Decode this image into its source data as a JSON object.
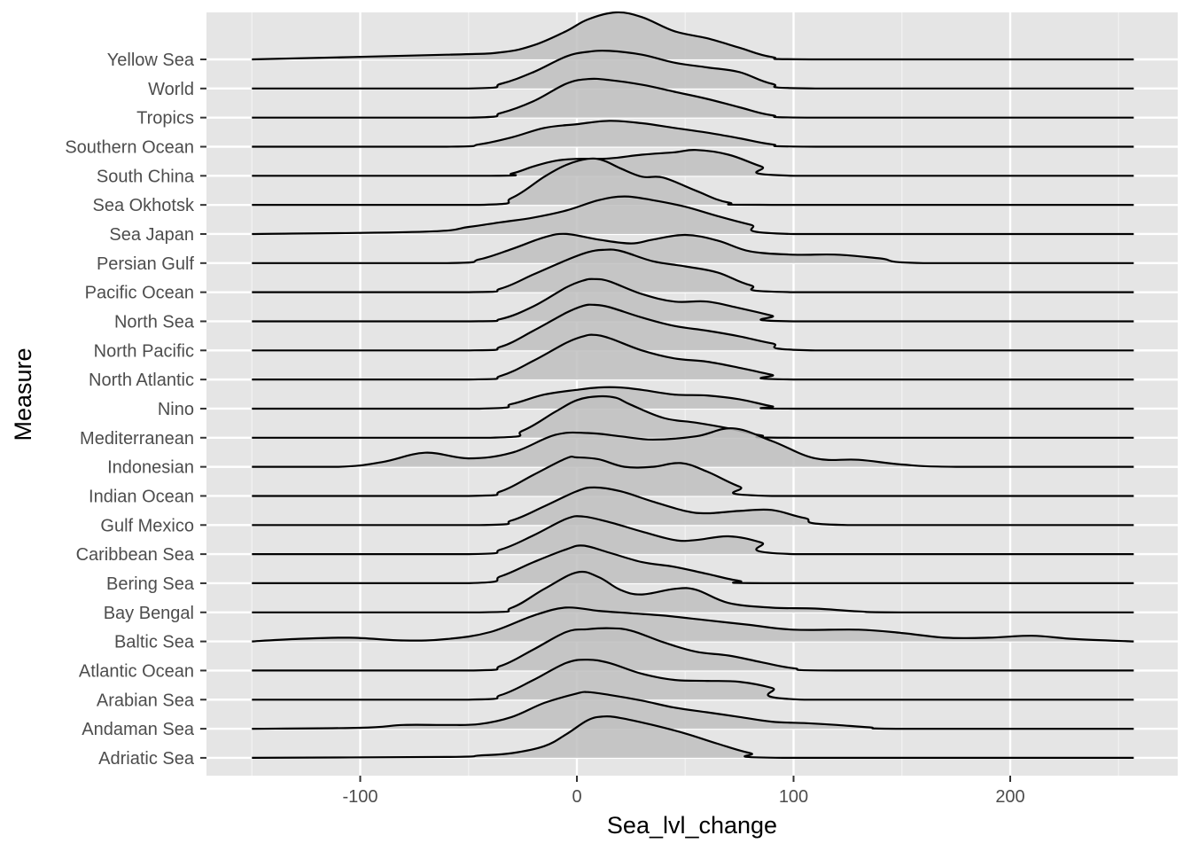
{
  "chart_data": {
    "type": "ridgeline",
    "xlabel": "Sea_lvl_change",
    "ylabel": "Measure",
    "xlim": [
      -172,
      260
    ],
    "x_ticks": [
      -100,
      0,
      100,
      200
    ],
    "x_tick_labels": [
      "-100",
      "0",
      "100",
      "200"
    ],
    "grid": true,
    "panel_background": "#e5e5e5",
    "fill_color": "#bfbfbf",
    "line_color": "#000000",
    "density_x_range": [
      -150,
      257
    ],
    "categories": [
      "Yellow Sea",
      "World",
      "Tropics",
      "Southern Ocean",
      "South China",
      "Sea Okhotsk",
      "Sea Japan",
      "Persian Gulf",
      "Pacific Ocean",
      "North Sea",
      "North Pacific",
      "North Atlantic",
      "Nino",
      "Mediterranean",
      "Indonesian",
      "Indian Ocean",
      "Gulf Mexico",
      "Caribbean Sea",
      "Bering Sea",
      "Bay Bengal",
      "Baltic Sea",
      "Atlantic Ocean",
      "Arabian Sea",
      "Andaman Sea",
      "Adriatic Sea"
    ],
    "series": [
      {
        "name": "Yellow Sea",
        "x": [
          -150,
          -60,
          -35,
          -20,
          -5,
          5,
          18,
          30,
          45,
          60,
          75,
          90,
          110,
          257
        ],
        "y": [
          0,
          0.1,
          0.15,
          0.3,
          0.6,
          0.85,
          1.0,
          0.9,
          0.6,
          0.45,
          0.25,
          0.05,
          0,
          0
        ]
      },
      {
        "name": "World",
        "x": [
          -150,
          -50,
          -35,
          -20,
          -5,
          5,
          15,
          30,
          45,
          60,
          75,
          90,
          110,
          257
        ],
        "y": [
          0,
          0,
          0.1,
          0.35,
          0.68,
          0.78,
          0.8,
          0.72,
          0.55,
          0.45,
          0.35,
          0.1,
          0,
          0
        ]
      },
      {
        "name": "Tropics",
        "x": [
          -150,
          -50,
          -35,
          -20,
          -5,
          5,
          15,
          30,
          45,
          60,
          75,
          90,
          110,
          257
        ],
        "y": [
          0,
          0,
          0.1,
          0.35,
          0.72,
          0.82,
          0.8,
          0.7,
          0.55,
          0.4,
          0.22,
          0.05,
          0,
          0
        ]
      },
      {
        "name": "Southern Ocean",
        "x": [
          -150,
          -60,
          -45,
          -30,
          -15,
          0,
          15,
          30,
          45,
          60,
          75,
          90,
          110,
          257
        ],
        "y": [
          0,
          0,
          0.05,
          0.2,
          0.4,
          0.48,
          0.55,
          0.5,
          0.4,
          0.3,
          0.18,
          0.05,
          0,
          0
        ]
      },
      {
        "name": "South China",
        "x": [
          -150,
          -40,
          -30,
          -20,
          -10,
          0,
          15,
          30,
          45,
          55,
          70,
          85,
          100,
          257
        ],
        "y": [
          0,
          0,
          0.05,
          0.2,
          0.32,
          0.36,
          0.37,
          0.45,
          0.5,
          0.55,
          0.45,
          0.2,
          0,
          0
        ]
      },
      {
        "name": "Sea Okhotsk",
        "x": [
          -150,
          -45,
          -30,
          -15,
          -5,
          5,
          12,
          20,
          30,
          40,
          55,
          70,
          90,
          257
        ],
        "y": [
          0,
          0,
          0.15,
          0.6,
          0.85,
          0.98,
          0.95,
          0.78,
          0.6,
          0.58,
          0.3,
          0.05,
          0,
          0
        ]
      },
      {
        "name": "Sea Japan",
        "x": [
          -150,
          -70,
          -50,
          -35,
          -20,
          -5,
          10,
          22,
          35,
          50,
          65,
          80,
          100,
          257
        ],
        "y": [
          0,
          0.05,
          0.15,
          0.25,
          0.35,
          0.5,
          0.72,
          0.8,
          0.72,
          0.58,
          0.38,
          0.2,
          0,
          0
        ]
      },
      {
        "name": "Persian Gulf",
        "x": [
          -150,
          -60,
          -45,
          -30,
          -15,
          -5,
          10,
          25,
          35,
          50,
          65,
          80,
          100,
          120,
          140,
          160,
          257
        ],
        "y": [
          0,
          0,
          0.08,
          0.3,
          0.55,
          0.62,
          0.5,
          0.42,
          0.5,
          0.6,
          0.48,
          0.25,
          0.18,
          0.18,
          0.1,
          0,
          0
        ]
      },
      {
        "name": "Pacific Ocean",
        "x": [
          -150,
          -50,
          -35,
          -20,
          -5,
          5,
          12,
          20,
          35,
          50,
          65,
          80,
          100,
          257
        ],
        "y": [
          0,
          0,
          0.08,
          0.38,
          0.68,
          0.85,
          0.9,
          0.88,
          0.66,
          0.55,
          0.42,
          0.15,
          0,
          0
        ]
      },
      {
        "name": "North Sea",
        "x": [
          -150,
          -50,
          -35,
          -20,
          -5,
          3,
          8,
          15,
          30,
          45,
          60,
          75,
          90,
          100,
          257
        ],
        "y": [
          0,
          0,
          0.05,
          0.32,
          0.72,
          0.87,
          0.9,
          0.85,
          0.58,
          0.42,
          0.42,
          0.28,
          0.12,
          0,
          0
        ]
      },
      {
        "name": "North Pacific",
        "x": [
          -150,
          -50,
          -35,
          -20,
          -5,
          3,
          8,
          15,
          30,
          45,
          60,
          75,
          90,
          110,
          257
        ],
        "y": [
          0,
          0,
          0.08,
          0.42,
          0.8,
          0.95,
          0.97,
          0.92,
          0.7,
          0.52,
          0.42,
          0.3,
          0.15,
          0,
          0
        ]
      },
      {
        "name": "North Atlantic",
        "x": [
          -150,
          -50,
          -35,
          -20,
          -5,
          3,
          8,
          15,
          30,
          45,
          60,
          75,
          90,
          100,
          257
        ],
        "y": [
          0,
          0,
          0.08,
          0.4,
          0.78,
          0.92,
          0.95,
          0.88,
          0.62,
          0.45,
          0.38,
          0.25,
          0.1,
          0,
          0
        ]
      },
      {
        "name": "Nino",
        "x": [
          -150,
          -45,
          -30,
          -15,
          0,
          10,
          20,
          30,
          45,
          60,
          75,
          90,
          100,
          257
        ],
        "y": [
          0,
          0,
          0.1,
          0.3,
          0.4,
          0.45,
          0.45,
          0.4,
          0.3,
          0.28,
          0.2,
          0.05,
          0,
          0
        ]
      },
      {
        "name": "Mediterranean",
        "x": [
          -150,
          -40,
          -25,
          -10,
          0,
          10,
          18,
          25,
          40,
          55,
          70,
          85,
          100,
          257
        ],
        "y": [
          0,
          0,
          0.15,
          0.55,
          0.8,
          0.88,
          0.85,
          0.7,
          0.42,
          0.32,
          0.2,
          0.05,
          0,
          0
        ]
      },
      {
        "name": "Indonesian",
        "x": [
          -150,
          -110,
          -90,
          -70,
          -50,
          -30,
          -10,
          5,
          20,
          35,
          55,
          72,
          90,
          110,
          130,
          150,
          175,
          257
        ],
        "y": [
          0,
          0,
          0.1,
          0.3,
          0.18,
          0.3,
          0.68,
          0.72,
          0.65,
          0.58,
          0.65,
          0.82,
          0.55,
          0.18,
          0.15,
          0.05,
          0,
          0
        ]
      },
      {
        "name": "Indian Ocean",
        "x": [
          -150,
          -50,
          -35,
          -20,
          -5,
          0,
          10,
          22,
          35,
          48,
          60,
          75,
          90,
          257
        ],
        "y": [
          0,
          0,
          0.1,
          0.45,
          0.8,
          0.82,
          0.78,
          0.62,
          0.62,
          0.7,
          0.52,
          0.2,
          0,
          0
        ]
      },
      {
        "name": "Gulf Mexico",
        "x": [
          -150,
          -45,
          -30,
          -15,
          0,
          8,
          20,
          35,
          50,
          60,
          75,
          90,
          105,
          125,
          257
        ],
        "y": [
          0,
          0,
          0.1,
          0.4,
          0.72,
          0.8,
          0.72,
          0.5,
          0.3,
          0.25,
          0.3,
          0.32,
          0.15,
          0,
          0
        ]
      },
      {
        "name": "Caribbean Sea",
        "x": [
          -150,
          -50,
          -35,
          -20,
          -5,
          3,
          15,
          30,
          45,
          55,
          70,
          85,
          100,
          257
        ],
        "y": [
          0,
          0,
          0.1,
          0.4,
          0.75,
          0.8,
          0.68,
          0.48,
          0.3,
          0.3,
          0.38,
          0.25,
          0,
          0
        ]
      },
      {
        "name": "Bering Sea",
        "x": [
          -150,
          -50,
          -35,
          -20,
          -5,
          3,
          15,
          30,
          45,
          60,
          75,
          90,
          257
        ],
        "y": [
          0,
          0,
          0.15,
          0.45,
          0.72,
          0.8,
          0.65,
          0.45,
          0.35,
          0.2,
          0.05,
          0,
          0
        ]
      },
      {
        "name": "Bay Bengal",
        "x": [
          -150,
          -45,
          -30,
          -15,
          0,
          10,
          20,
          30,
          45,
          55,
          70,
          90,
          110,
          130,
          150,
          257
        ],
        "y": [
          0,
          0,
          0.1,
          0.5,
          0.85,
          0.75,
          0.48,
          0.38,
          0.5,
          0.48,
          0.2,
          0.1,
          0.08,
          0.02,
          0,
          0
        ]
      },
      {
        "name": "Baltic Sea",
        "x": [
          -150,
          -130,
          -105,
          -80,
          -60,
          -40,
          -20,
          -5,
          10,
          25,
          40,
          60,
          80,
          100,
          130,
          150,
          170,
          190,
          210,
          230,
          257
        ],
        "y": [
          0,
          0.05,
          0.08,
          0.02,
          0.05,
          0.2,
          0.55,
          0.72,
          0.65,
          0.6,
          0.55,
          0.45,
          0.35,
          0.25,
          0.25,
          0.18,
          0.08,
          0.08,
          0.12,
          0.05,
          0
        ]
      },
      {
        "name": "Atlantic Ocean",
        "x": [
          -150,
          -50,
          -35,
          -20,
          -5,
          5,
          15,
          25,
          40,
          55,
          70,
          85,
          100,
          120,
          257
        ],
        "y": [
          0,
          0,
          0.1,
          0.45,
          0.82,
          0.88,
          0.9,
          0.85,
          0.6,
          0.4,
          0.32,
          0.18,
          0.05,
          0,
          0
        ]
      },
      {
        "name": "Arabian Sea",
        "x": [
          -150,
          -50,
          -35,
          -20,
          -5,
          5,
          15,
          30,
          45,
          60,
          75,
          90,
          105,
          257
        ],
        "y": [
          0,
          0,
          0.1,
          0.42,
          0.78,
          0.85,
          0.78,
          0.55,
          0.42,
          0.4,
          0.38,
          0.25,
          0,
          0
        ]
      },
      {
        "name": "Andaman Sea",
        "x": [
          -150,
          -100,
          -80,
          -60,
          -45,
          -30,
          -15,
          0,
          5,
          15,
          30,
          45,
          60,
          75,
          90,
          105,
          120,
          135,
          150,
          257
        ],
        "y": [
          0,
          0.02,
          0.08,
          0.08,
          0.1,
          0.25,
          0.55,
          0.75,
          0.78,
          0.72,
          0.6,
          0.45,
          0.35,
          0.25,
          0.15,
          0.12,
          0.08,
          0.03,
          0,
          0
        ]
      },
      {
        "name": "Adriatic Sea",
        "x": [
          -150,
          -60,
          -45,
          -30,
          -15,
          -5,
          5,
          12,
          20,
          35,
          50,
          65,
          80,
          95,
          257
        ],
        "y": [
          0,
          0.02,
          0.05,
          0.1,
          0.25,
          0.5,
          0.8,
          0.88,
          0.85,
          0.7,
          0.52,
          0.3,
          0.1,
          0,
          0
        ]
      }
    ]
  }
}
